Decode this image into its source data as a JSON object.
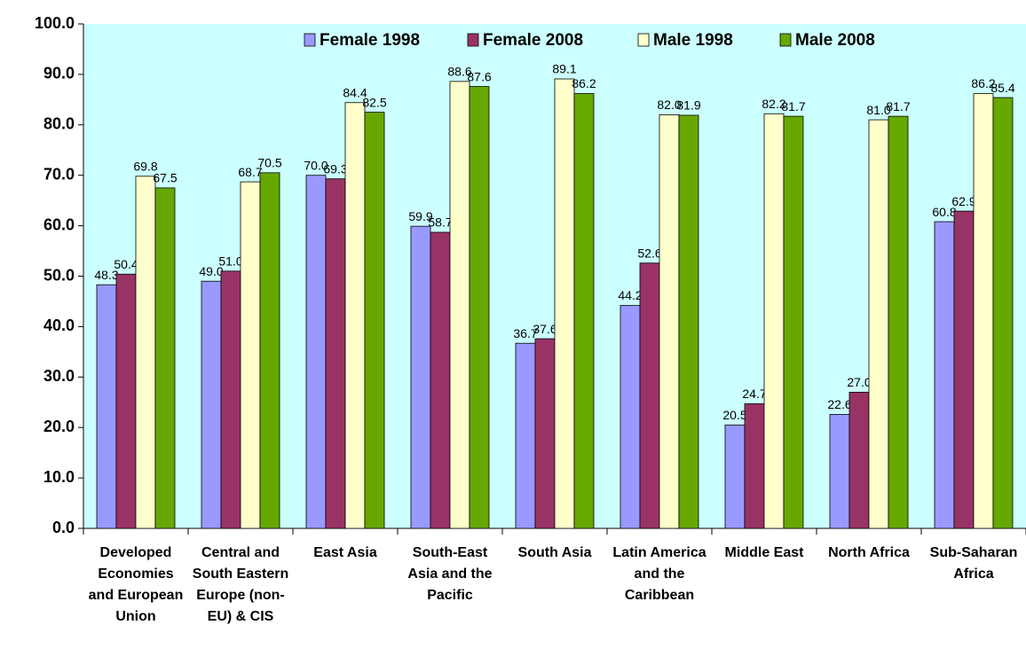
{
  "chart_data": {
    "type": "bar",
    "categories": [
      "Developed Economies and European Union",
      "Central and South Eastern Europe (non-EU) & CIS",
      "East Asia",
      "South-East Asia and the Pacific",
      "South Asia",
      "Latin America and the Caribbean",
      "Middle East",
      "North Africa",
      "Sub-Saharan Africa"
    ],
    "series": [
      {
        "name": "Female 1998",
        "color": "#9999ff",
        "values": [
          48.3,
          49.0,
          70.0,
          59.9,
          36.7,
          44.2,
          20.5,
          22.6,
          60.8
        ],
        "value_labels": [
          "48.3",
          "49.0",
          "70.0",
          "59.9",
          "36.7",
          "44.2",
          "20.5",
          "22.6",
          "60.8"
        ]
      },
      {
        "name": "Female 2008",
        "color": "#993366",
        "values": [
          50.4,
          51.0,
          69.3,
          58.7,
          37.6,
          52.6,
          24.7,
          27.0,
          62.9
        ],
        "value_labels": [
          "50.4",
          "51.0",
          "69.3",
          "58.7",
          "37.6",
          "52.6",
          "24.7",
          "27.0",
          "62.9"
        ]
      },
      {
        "name": "Male 1998",
        "color": "#ffffcc",
        "values": [
          69.8,
          68.7,
          84.4,
          88.6,
          89.1,
          82.0,
          82.2,
          81.0,
          86.2
        ],
        "value_labels": [
          "69.8",
          "68.7",
          "84.4",
          "88.6",
          "89.1",
          "82.0",
          "82.2",
          "81.0",
          "86.2"
        ]
      },
      {
        "name": "Male 2008",
        "color": "#66a800",
        "values": [
          67.5,
          70.5,
          82.5,
          87.6,
          86.2,
          81.9,
          81.7,
          81.7,
          85.4
        ],
        "value_labels": [
          "67.5",
          "70.5",
          "82.5",
          "87.6",
          "86.2",
          "81.9",
          "81.7",
          "81.7",
          "85.4"
        ]
      }
    ],
    "ylim": [
      0,
      100
    ],
    "yticks": [
      {
        "value": 0,
        "label": "0.0"
      },
      {
        "value": 10,
        "label": "10.0"
      },
      {
        "value": 20,
        "label": "20.0"
      },
      {
        "value": 30,
        "label": "30.0"
      },
      {
        "value": 40,
        "label": "40.0"
      },
      {
        "value": 50,
        "label": "50.0"
      },
      {
        "value": 60,
        "label": "60.0"
      },
      {
        "value": 70,
        "label": "70.0"
      },
      {
        "value": 80,
        "label": "80.0"
      },
      {
        "value": 90,
        "label": "90.0"
      },
      {
        "value": 100,
        "label": "100.0"
      }
    ],
    "legend": "top",
    "plot_background": "#ccffff"
  }
}
